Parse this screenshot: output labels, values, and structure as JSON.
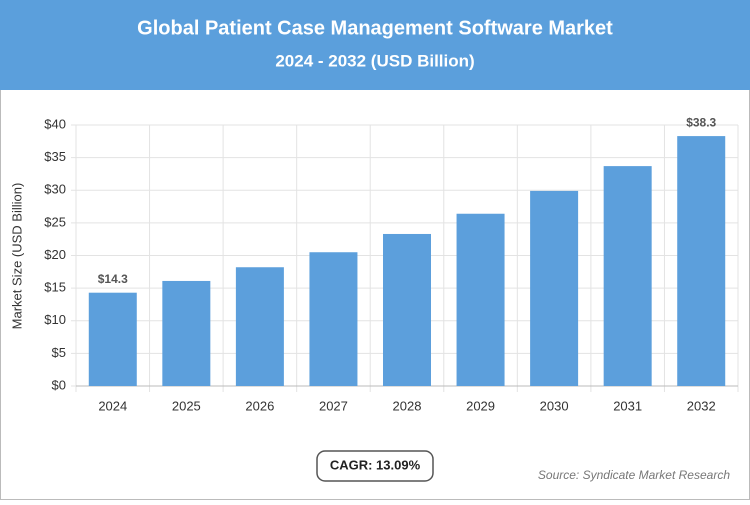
{
  "chart_data": {
    "type": "bar",
    "title": "Global Patient Case Management Software Market",
    "subtitle": "2024 - 2032 (USD Billion)",
    "y_label": "Market Size (USD Billion)",
    "categories": [
      "2024",
      "2025",
      "2026",
      "2027",
      "2028",
      "2029",
      "2030",
      "2031",
      "2032"
    ],
    "values": [
      14.3,
      16.1,
      18.2,
      20.5,
      23.3,
      26.4,
      29.9,
      33.7,
      38.3
    ],
    "value_labels": [
      "$14.3",
      null,
      null,
      null,
      null,
      null,
      null,
      null,
      "$38.3"
    ],
    "color": "#5c9fdc",
    "ylim": [
      0,
      40
    ],
    "yticks": [
      {
        "value": 0,
        "label": "$0"
      },
      {
        "value": 5,
        "label": "$5"
      },
      {
        "value": 10,
        "label": "$10"
      },
      {
        "value": 15,
        "label": "$15"
      },
      {
        "value": 20,
        "label": "$20"
      },
      {
        "value": 25,
        "label": "$25"
      },
      {
        "value": 30,
        "label": "$30"
      },
      {
        "value": 35,
        "label": "$35"
      },
      {
        "value": 40,
        "label": "$40"
      }
    ],
    "grid": true,
    "cagr": "CAGR: 13.09%",
    "source": "Source: Syndicate Market Research"
  }
}
